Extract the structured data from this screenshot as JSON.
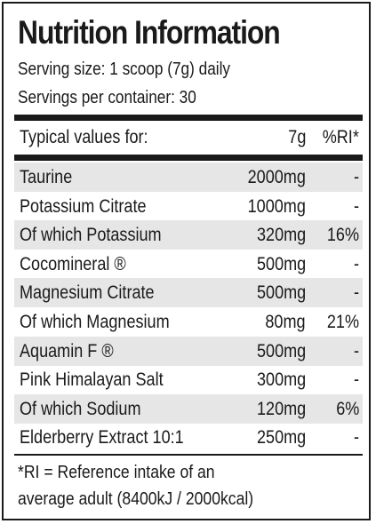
{
  "title": "Nutrition Information",
  "serving_size": "Serving size: 1 scoop (7g) daily",
  "servings_per_container": "Servings per container: 30",
  "header": {
    "name": "Typical values for:",
    "amount": "7g",
    "ri": "%RI*"
  },
  "rows": [
    {
      "name": "Taurine",
      "amount": "2000mg",
      "ri": "-",
      "shaded": true
    },
    {
      "name": "Potassium Citrate",
      "amount": "1000mg",
      "ri": "-",
      "shaded": false
    },
    {
      "name": "Of which Potassium",
      "amount": "320mg",
      "ri": "16%",
      "shaded": true
    },
    {
      "name": "Cocomineral ®",
      "amount": "500mg",
      "ri": "-",
      "shaded": false
    },
    {
      "name": "Magnesium Citrate",
      "amount": "500mg",
      "ri": "-",
      "shaded": true
    },
    {
      "name": "Of which Magnesium",
      "amount": "80mg",
      "ri": "21%",
      "shaded": false
    },
    {
      "name": "Aquamin F ®",
      "amount": "500mg",
      "ri": "-",
      "shaded": true
    },
    {
      "name": "Pink Himalayan Salt",
      "amount": "300mg",
      "ri": "-",
      "shaded": false
    },
    {
      "name": "Of which Sodium",
      "amount": "120mg",
      "ri": "6%",
      "shaded": true
    },
    {
      "name": "Elderberry Extract 10:1",
      "amount": "250mg",
      "ri": "-",
      "shaded": false
    }
  ],
  "footnote": {
    "line1": "*RI = Reference intake of an",
    "line2": "average adult (8400kJ / 2000kcal)"
  },
  "colors": {
    "text": "#1a1a1a",
    "row_shade": "#e6e6e6",
    "background": "#ffffff"
  }
}
